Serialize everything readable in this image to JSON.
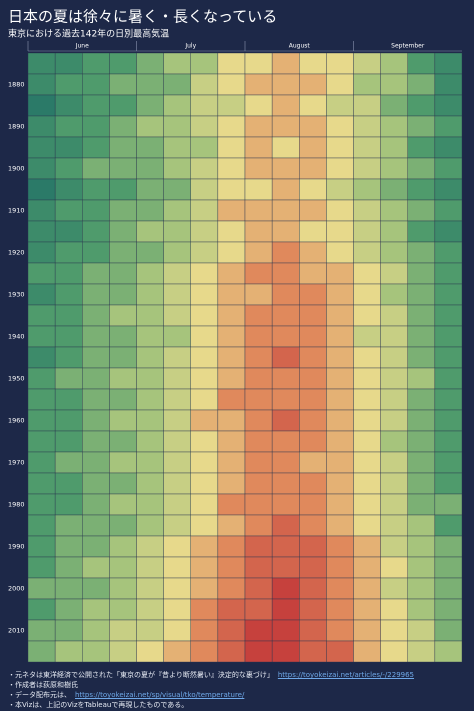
{
  "chart_data": {
    "type": "heatmap",
    "title": "日本の夏は徐々に暑く・長くなっている",
    "subtitle": "東京における過去142年の日別最高気温",
    "months": [
      "June",
      "July",
      "August",
      "September"
    ],
    "columns_per_month": 4,
    "rows": [
      null,
      "1880",
      null,
      "1890",
      null,
      "1900",
      null,
      "1910",
      null,
      "1920",
      null,
      "1930",
      null,
      "1940",
      null,
      "1950",
      null,
      "1960",
      null,
      "1970",
      null,
      "1980",
      null,
      "1990",
      null,
      "2000",
      null,
      "2010",
      null
    ],
    "color_scale": [
      {
        "value": 23,
        "color": "#2b7a68"
      },
      {
        "value": 25,
        "color": "#4f9b6c"
      },
      {
        "value": 27,
        "color": "#a6c47c"
      },
      {
        "value": 29,
        "color": "#e7d98b"
      },
      {
        "value": 31,
        "color": "#e0895c"
      },
      {
        "value": 33,
        "color": "#c6413d"
      }
    ],
    "values": [
      [
        24,
        24,
        25,
        25,
        26,
        27,
        27,
        29,
        29,
        30,
        29,
        29,
        28,
        27,
        25,
        24
      ],
      [
        24,
        25,
        25,
        26,
        26,
        26,
        28,
        29,
        30,
        30,
        30,
        29,
        27,
        27,
        26,
        24
      ],
      [
        23,
        24,
        25,
        25,
        26,
        27,
        28,
        28,
        29,
        30,
        29,
        28,
        28,
        26,
        25,
        24
      ],
      [
        24,
        25,
        25,
        26,
        27,
        27,
        28,
        29,
        30,
        30,
        30,
        29,
        28,
        27,
        26,
        25
      ],
      [
        24,
        24,
        25,
        26,
        26,
        27,
        27,
        29,
        30,
        29,
        30,
        29,
        28,
        27,
        25,
        24
      ],
      [
        24,
        25,
        26,
        26,
        26,
        27,
        28,
        29,
        30,
        30,
        30,
        29,
        28,
        27,
        26,
        25
      ],
      [
        23,
        24,
        25,
        25,
        26,
        26,
        28,
        29,
        29,
        30,
        29,
        28,
        27,
        26,
        25,
        24
      ],
      [
        24,
        25,
        25,
        26,
        26,
        27,
        28,
        30,
        30,
        30,
        30,
        29,
        28,
        27,
        26,
        25
      ],
      [
        24,
        24,
        25,
        26,
        27,
        27,
        28,
        29,
        30,
        30,
        29,
        29,
        28,
        27,
        25,
        24
      ],
      [
        24,
        25,
        25,
        26,
        26,
        27,
        28,
        29,
        30,
        31,
        30,
        29,
        28,
        27,
        26,
        25
      ],
      [
        25,
        25,
        26,
        26,
        27,
        28,
        29,
        30,
        31,
        31,
        30,
        30,
        29,
        28,
        26,
        25
      ],
      [
        24,
        25,
        26,
        26,
        27,
        28,
        29,
        30,
        30,
        31,
        31,
        30,
        29,
        27,
        26,
        25
      ],
      [
        25,
        25,
        26,
        27,
        27,
        28,
        29,
        30,
        31,
        31,
        31,
        30,
        29,
        28,
        26,
        25
      ],
      [
        25,
        25,
        26,
        26,
        27,
        27,
        29,
        30,
        31,
        31,
        31,
        30,
        28,
        28,
        26,
        25
      ],
      [
        24,
        25,
        26,
        26,
        27,
        28,
        29,
        30,
        31,
        32,
        31,
        30,
        29,
        28,
        26,
        25
      ],
      [
        25,
        26,
        26,
        27,
        27,
        28,
        29,
        30,
        31,
        31,
        31,
        30,
        29,
        28,
        27,
        25
      ],
      [
        25,
        25,
        26,
        26,
        27,
        28,
        29,
        31,
        31,
        31,
        31,
        30,
        29,
        28,
        26,
        25
      ],
      [
        25,
        25,
        26,
        27,
        27,
        28,
        30,
        30,
        31,
        32,
        31,
        30,
        29,
        28,
        26,
        25
      ],
      [
        25,
        25,
        26,
        26,
        27,
        28,
        29,
        30,
        31,
        31,
        31,
        30,
        29,
        27,
        26,
        25
      ],
      [
        25,
        26,
        26,
        27,
        27,
        28,
        29,
        30,
        31,
        31,
        30,
        30,
        29,
        28,
        26,
        25
      ],
      [
        25,
        25,
        26,
        26,
        27,
        28,
        29,
        30,
        31,
        31,
        31,
        30,
        29,
        28,
        26,
        25
      ],
      [
        25,
        25,
        26,
        27,
        27,
        28,
        29,
        31,
        31,
        31,
        31,
        30,
        29,
        28,
        26,
        26
      ],
      [
        25,
        26,
        26,
        26,
        27,
        28,
        29,
        30,
        31,
        32,
        31,
        30,
        29,
        28,
        27,
        25
      ],
      [
        25,
        26,
        26,
        27,
        28,
        29,
        30,
        31,
        32,
        32,
        32,
        31,
        30,
        28,
        27,
        26
      ],
      [
        25,
        26,
        27,
        27,
        28,
        29,
        30,
        31,
        32,
        32,
        32,
        31,
        30,
        29,
        27,
        26
      ],
      [
        26,
        26,
        26,
        27,
        28,
        29,
        30,
        31,
        32,
        33,
        32,
        31,
        30,
        28,
        27,
        26
      ],
      [
        25,
        26,
        27,
        27,
        28,
        29,
        31,
        32,
        32,
        33,
        32,
        31,
        30,
        29,
        27,
        26
      ],
      [
        26,
        26,
        27,
        28,
        28,
        29,
        31,
        32,
        33,
        33,
        32,
        31,
        30,
        29,
        28,
        26
      ],
      [
        26,
        27,
        27,
        28,
        29,
        30,
        31,
        32,
        33,
        33,
        32,
        32,
        30,
        29,
        28,
        27
      ]
    ]
  },
  "notes": [
    {
      "text": "・元ネタは東洋経済で公開された「東京の夏が『昔より断然暑い』決定的な裏づけ」",
      "link": "https://toyokeizai.net/articles/-/229965"
    },
    {
      "text": "・作成者は荻原和樹氏"
    },
    {
      "text": "・データ配布元は、",
      "link": "https://toyokeizai.net/sp/visual/tko/temperature/"
    },
    {
      "text": "・本Vizは、上記のVizをTableauで再現したものである。"
    }
  ]
}
